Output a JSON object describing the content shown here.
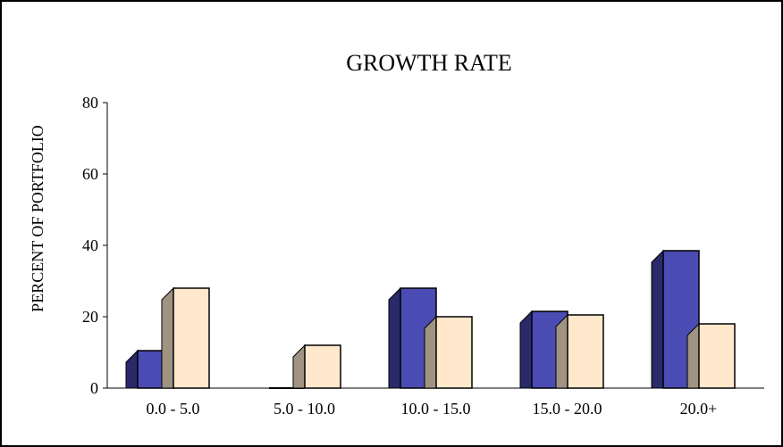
{
  "chart_data": {
    "type": "bar",
    "title": "GROWTH RATE",
    "xlabel": "",
    "ylabel": "PERCENT OF PORTFOLIO",
    "categories": [
      "0.0 - 5.0",
      "5.0 - 10.0",
      "10.0 - 15.0",
      "15.0 - 20.0",
      "20.0+"
    ],
    "ylim": [
      0,
      80
    ],
    "yticks": [
      0,
      20,
      40,
      60,
      80
    ],
    "grid": false,
    "legend": "none",
    "series": [
      {
        "values": [
          10.5,
          0,
          28,
          21.5,
          38.5
        ],
        "color": "#4b4bb4",
        "side_color": "#2a2a6a"
      },
      {
        "values": [
          28,
          12,
          20,
          20.5,
          18
        ],
        "color": "#ffe8cc",
        "side_color": "#a09382"
      }
    ]
  }
}
